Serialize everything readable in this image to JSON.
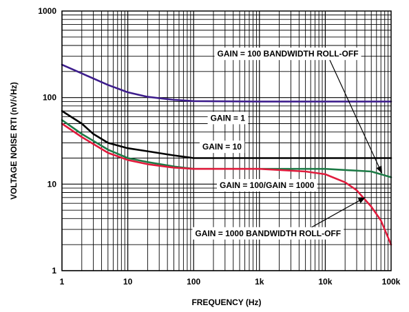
{
  "chart_data": {
    "type": "line",
    "xscale": "log",
    "yscale": "log",
    "xlim": [
      1,
      100000
    ],
    "ylim": [
      1,
      1000
    ],
    "grid": true,
    "xlabel": "FREQUENCY (Hz)",
    "ylabel": "VOLTAGE NOISE RTI (nV/√Hz)",
    "x_tick_labels": [
      "1",
      "10",
      "100",
      "1k",
      "10k",
      "100k"
    ],
    "y_tick_labels": [
      "1",
      "10",
      "100",
      "1000"
    ],
    "series": [
      {
        "color": "#3d1d8c",
        "points": [
          [
            1,
            240
          ],
          [
            2,
            190
          ],
          [
            5,
            140
          ],
          [
            10,
            115
          ],
          [
            20,
            102
          ],
          [
            50,
            94
          ],
          [
            100,
            91
          ],
          [
            1000,
            90
          ],
          [
            10000,
            90
          ],
          [
            100000,
            90
          ]
        ]
      },
      {
        "color": "#000000",
        "points": [
          [
            1,
            70
          ],
          [
            2,
            50
          ],
          [
            3,
            38
          ],
          [
            5,
            30
          ],
          [
            10,
            26
          ],
          [
            20,
            24
          ],
          [
            50,
            21.5
          ],
          [
            100,
            20
          ],
          [
            1000,
            20
          ],
          [
            10000,
            20
          ],
          [
            100000,
            20
          ]
        ]
      },
      {
        "color": "#1d7a46",
        "points": [
          [
            1,
            55
          ],
          [
            2,
            38
          ],
          [
            5,
            25
          ],
          [
            10,
            20
          ],
          [
            20,
            18
          ],
          [
            50,
            16
          ],
          [
            100,
            15
          ],
          [
            1000,
            15
          ],
          [
            10000,
            15
          ],
          [
            50000,
            14
          ],
          [
            70000,
            13
          ],
          [
            100000,
            12
          ]
        ]
      },
      {
        "color": "#e01b3c",
        "points": [
          [
            1,
            50
          ],
          [
            2,
            35
          ],
          [
            5,
            23
          ],
          [
            10,
            19
          ],
          [
            20,
            17
          ],
          [
            50,
            15.5
          ],
          [
            100,
            15
          ],
          [
            1000,
            15
          ],
          [
            5000,
            14
          ],
          [
            10000,
            13
          ],
          [
            20000,
            10.5
          ],
          [
            30000,
            8.5
          ],
          [
            50000,
            5.5
          ],
          [
            70000,
            3.8
          ],
          [
            100000,
            2
          ]
        ]
      }
    ],
    "annotations": [
      {
        "text": "GAIN = 100 BANDWIDTH ROLL-OFF",
        "x": 2700,
        "y": 320,
        "arrow_to": [
          72000,
          13.5
        ]
      },
      {
        "text": "GAIN = 1",
        "x": 330,
        "y": 58
      },
      {
        "text": "GAIN = 10",
        "x": 270,
        "y": 27
      },
      {
        "text": "GAIN = 100/GAIN = 1000",
        "x": 1300,
        "y": 9.7
      },
      {
        "text": "GAIN = 1000 BANDWIDTH ROLL-OFF",
        "x": 1350,
        "y": 2.7,
        "arrow_to": [
          40000,
          7
        ]
      }
    ]
  }
}
